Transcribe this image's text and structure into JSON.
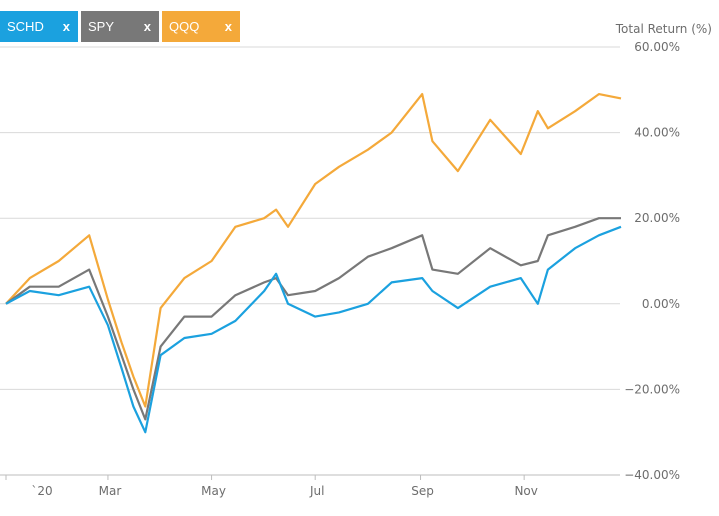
{
  "tabs": [
    {
      "label": "SCHD",
      "close": "x",
      "color": "#1ba1df"
    },
    {
      "label": "SPY",
      "close": "x",
      "color": "#787878"
    },
    {
      "label": "QQQ",
      "close": "x",
      "color": "#f4a93a"
    }
  ],
  "chart_data": {
    "type": "line",
    "ylabel": "Total Return (%)",
    "ylim": [
      -40,
      60
    ],
    "yticks": [
      "60.00%",
      "40.00%",
      "20.00%",
      "0.00%",
      "−20.00%",
      "−40.00%"
    ],
    "yticks_values": [
      60,
      40,
      20,
      0,
      -20,
      -40
    ],
    "xticks": [
      "`20",
      "Mar",
      "May",
      "Jul",
      "Sep",
      "Nov"
    ],
    "xticks_values": [
      "2020-01-01",
      "2020-03-01",
      "2020-05-01",
      "2020-07-01",
      "2020-09-01",
      "2020-11-01"
    ],
    "x": [
      "2020-01-01",
      "2020-01-15",
      "2020-02-01",
      "2020-02-19",
      "2020-03-01",
      "2020-03-09",
      "2020-03-16",
      "2020-03-23",
      "2020-04-01",
      "2020-04-15",
      "2020-05-01",
      "2020-05-15",
      "2020-06-01",
      "2020-06-08",
      "2020-06-15",
      "2020-07-01",
      "2020-07-15",
      "2020-08-01",
      "2020-08-15",
      "2020-09-02",
      "2020-09-08",
      "2020-09-23",
      "2020-10-12",
      "2020-10-30",
      "2020-11-09",
      "2020-11-15",
      "2020-12-01",
      "2020-12-15",
      "2020-12-28"
    ],
    "series": [
      {
        "name": "SCHD",
        "color": "#1ba1df",
        "values": [
          0,
          3,
          2,
          4,
          -5,
          -15,
          -24,
          -30,
          -12,
          -8,
          -7,
          -4,
          3,
          7,
          0,
          -3,
          -2,
          0,
          5,
          6,
          3,
          -1,
          4,
          6,
          0,
          8,
          13,
          16,
          18
        ]
      },
      {
        "name": "SPY",
        "color": "#787878",
        "values": [
          0,
          4,
          4,
          8,
          -3,
          -12,
          -20,
          -27,
          -10,
          -3,
          -3,
          2,
          5,
          6,
          2,
          3,
          6,
          11,
          13,
          16,
          8,
          7,
          13,
          9,
          10,
          16,
          18,
          20,
          20
        ]
      },
      {
        "name": "QQQ",
        "color": "#f4a93a",
        "values": [
          0,
          6,
          10,
          16,
          1,
          -9,
          -17,
          -24,
          -1,
          6,
          10,
          18,
          20,
          22,
          18,
          28,
          32,
          36,
          40,
          49,
          38,
          31,
          43,
          35,
          45,
          41,
          45,
          49,
          48
        ]
      }
    ],
    "grid": true,
    "legend": "top-left"
  }
}
